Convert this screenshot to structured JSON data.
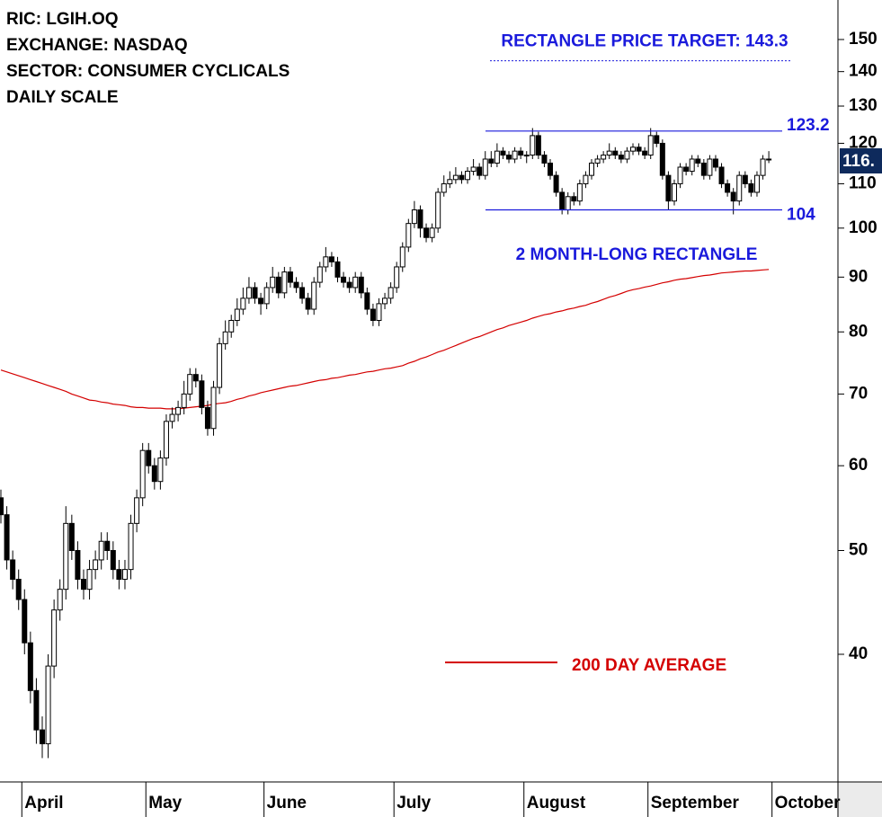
{
  "chart_data": {
    "type": "candlestick",
    "info_lines": [
      "RIC: LGIH.OQ",
      "EXCHANGE: NASDAQ",
      "SECTOR: CONSUMER CYCLICALS",
      "DAILY SCALE"
    ],
    "categories": [
      null,
      null,
      null,
      null,
      "April",
      null,
      null,
      null,
      null,
      null,
      null,
      null,
      null,
      null,
      null,
      null,
      null,
      null,
      null,
      null,
      null,
      null,
      null,
      null,
      null,
      "May",
      null,
      null,
      null,
      null,
      null,
      null,
      null,
      null,
      null,
      null,
      null,
      null,
      null,
      null,
      null,
      null,
      null,
      null,
      null,
      "June",
      null,
      null,
      null,
      null,
      null,
      null,
      null,
      null,
      null,
      null,
      null,
      null,
      null,
      null,
      null,
      null,
      null,
      null,
      null,
      null,
      null,
      "July",
      null,
      null,
      null,
      null,
      null,
      null,
      null,
      null,
      null,
      null,
      null,
      null,
      null,
      null,
      null,
      null,
      null,
      null,
      null,
      null,
      null,
      "August",
      null,
      null,
      null,
      null,
      null,
      null,
      null,
      null,
      null,
      null,
      null,
      null,
      null,
      null,
      null,
      null,
      null,
      null,
      null,
      null,
      "September",
      null,
      null,
      null,
      null,
      null,
      null,
      null,
      null,
      null,
      null,
      null,
      null,
      null,
      null,
      null,
      null,
      null,
      null,
      null,
      null,
      "October"
    ],
    "open": [
      56,
      54,
      49,
      47,
      45,
      41,
      37,
      34,
      33,
      39,
      44,
      46,
      53,
      50,
      47,
      46,
      48,
      49,
      51,
      50,
      48,
      47,
      48,
      53,
      56,
      62,
      60,
      58,
      61,
      66,
      67,
      68,
      70,
      73,
      72,
      68,
      65,
      71,
      78,
      80,
      82,
      84,
      86,
      88,
      86,
      85,
      88,
      90,
      87,
      91,
      89,
      88,
      86,
      84,
      89,
      92,
      94,
      93,
      90,
      89,
      88,
      90,
      87,
      84,
      82,
      85,
      86,
      88,
      92,
      96,
      101,
      104,
      100,
      98,
      100,
      108,
      110,
      111,
      112,
      111,
      113,
      114,
      112,
      116,
      115,
      118,
      117,
      116,
      118,
      117,
      117,
      122,
      117,
      115,
      112,
      108,
      104,
      107,
      106,
      110,
      112,
      115,
      116,
      117,
      118,
      117,
      116,
      118,
      119,
      118,
      117,
      122,
      120,
      112,
      106,
      110,
      114,
      113,
      116,
      115,
      112,
      116,
      114,
      110,
      108,
      106,
      112,
      110,
      108,
      112,
      116,
      null
    ],
    "high": [
      57,
      55,
      50,
      48,
      46,
      42,
      38,
      35,
      40,
      45,
      47,
      55,
      54,
      51,
      48,
      49,
      50,
      52,
      52,
      51,
      49,
      49,
      54,
      57,
      63,
      63,
      61,
      62,
      67,
      68,
      69,
      72,
      74,
      74,
      73,
      69,
      72,
      79,
      82,
      83,
      86,
      88,
      90,
      89,
      87,
      89,
      92,
      91,
      92,
      92,
      90,
      89,
      87,
      90,
      93,
      96,
      95,
      94,
      91,
      90,
      91,
      91,
      88,
      85,
      86,
      87,
      89,
      93,
      97,
      102,
      106,
      105,
      101,
      101,
      109,
      112,
      113,
      114,
      113,
      114,
      116,
      115,
      118,
      118,
      120,
      119,
      118,
      119,
      119,
      118,
      124,
      123,
      118,
      116,
      113,
      109,
      108,
      108,
      111,
      113,
      116,
      117,
      118,
      120,
      119,
      118,
      119,
      120,
      120,
      119,
      124,
      123,
      121,
      113,
      111,
      115,
      115,
      117,
      117,
      116,
      117,
      117,
      115,
      111,
      109,
      113,
      113,
      111,
      113,
      117,
      118,
      null
    ],
    "low": [
      53,
      48,
      46,
      44,
      40,
      36,
      33,
      32,
      32,
      38,
      43,
      45,
      49,
      46,
      45,
      45,
      47,
      48,
      49,
      47,
      46,
      46,
      47,
      52,
      55,
      59,
      57,
      57,
      60,
      65,
      66,
      67,
      69,
      71,
      67,
      64,
      64,
      70,
      77,
      79,
      81,
      83,
      85,
      85,
      83,
      84,
      87,
      86,
      86,
      88,
      87,
      85,
      83,
      83,
      88,
      91,
      92,
      89,
      88,
      87,
      87,
      86,
      83,
      81,
      81,
      84,
      85,
      87,
      91,
      95,
      100,
      98,
      97,
      97,
      99,
      107,
      109,
      110,
      110,
      110,
      112,
      111,
      111,
      114,
      114,
      116,
      115,
      115,
      116,
      115,
      116,
      116,
      114,
      111,
      107,
      103,
      103,
      105,
      105,
      109,
      111,
      114,
      115,
      116,
      116,
      115,
      115,
      117,
      117,
      116,
      116,
      119,
      111,
      104,
      105,
      109,
      112,
      112,
      114,
      111,
      111,
      113,
      109,
      107,
      103,
      105,
      109,
      107,
      107,
      111,
      115,
      null
    ],
    "close": [
      54,
      49,
      47,
      45,
      41,
      37,
      34,
      33,
      39,
      44,
      46,
      53,
      50,
      47,
      46,
      48,
      49,
      51,
      50,
      48,
      47,
      48,
      53,
      56,
      62,
      60,
      58,
      61,
      66,
      67,
      68,
      70,
      73,
      72,
      68,
      65,
      71,
      78,
      80,
      82,
      84,
      86,
      88,
      86,
      85,
      88,
      90,
      87,
      91,
      89,
      88,
      86,
      84,
      89,
      92,
      94,
      93,
      90,
      89,
      88,
      90,
      87,
      84,
      82,
      85,
      86,
      88,
      92,
      96,
      101,
      104,
      100,
      98,
      100,
      108,
      110,
      111,
      112,
      111,
      113,
      114,
      112,
      116,
      115,
      118,
      117,
      116,
      118,
      117,
      117,
      122,
      117,
      115,
      112,
      108,
      104,
      107,
      106,
      110,
      112,
      115,
      116,
      117,
      118,
      117,
      116,
      118,
      119,
      118,
      117,
      122,
      120,
      112,
      106,
      110,
      114,
      113,
      116,
      115,
      112,
      116,
      114,
      110,
      108,
      106,
      112,
      110,
      108,
      112,
      116,
      116,
      null
    ],
    "series": [
      {
        "name": "200 DAY AVERAGE",
        "color": "#d40000",
        "values": [
          73.7,
          73.4,
          73.1,
          72.8,
          72.5,
          72.2,
          71.9,
          71.6,
          71.3,
          71.0,
          70.7,
          70.4,
          70.0,
          69.7,
          69.4,
          69.1,
          69.0,
          68.8,
          68.7,
          68.5,
          68.4,
          68.3,
          68.1,
          68.0,
          68.0,
          67.9,
          67.9,
          67.9,
          67.8,
          67.8,
          67.8,
          67.9,
          68.0,
          68.1,
          68.2,
          68.3,
          68.5,
          68.6,
          68.7,
          68.9,
          69.2,
          69.4,
          69.7,
          69.9,
          70.2,
          70.4,
          70.6,
          70.8,
          71.0,
          71.2,
          71.3,
          71.5,
          71.7,
          71.9,
          72.1,
          72.2,
          72.4,
          72.5,
          72.7,
          72.9,
          73.0,
          73.2,
          73.4,
          73.5,
          73.7,
          73.9,
          74.0,
          74.2,
          74.4,
          74.8,
          75.1,
          75.5,
          75.8,
          76.2,
          76.6,
          76.9,
          77.3,
          77.7,
          78.1,
          78.5,
          78.9,
          79.2,
          79.6,
          80.0,
          80.4,
          80.7,
          81.1,
          81.4,
          81.7,
          82.0,
          82.4,
          82.7,
          83.0,
          83.2,
          83.5,
          83.7,
          84.0,
          84.2,
          84.5,
          84.7,
          85.1,
          85.4,
          85.8,
          86.2,
          86.5,
          86.9,
          87.3,
          87.6,
          87.8,
          88.1,
          88.3,
          88.6,
          88.9,
          89.1,
          89.4,
          89.6,
          89.7,
          89.9,
          90.1,
          90.3,
          90.4,
          90.6,
          90.8,
          90.9,
          91.0,
          91.1,
          91.2,
          91.2,
          91.3,
          91.4,
          91.5,
          null
        ]
      }
    ],
    "ylim": [
      30.4,
      163.3
    ],
    "log_scale": true,
    "yticks": [
      40,
      50,
      60,
      70,
      80,
      90,
      100,
      110,
      120,
      130,
      140,
      150
    ],
    "levels": [
      123.2,
      104
    ],
    "level_color": "#1a1adc",
    "target": 143.3,
    "target_label": "RECTANGLE PRICE TARGET: 143.3",
    "rectangle_label": "2 MONTH-LONG RECTANGLE",
    "last_price_label": "116."
  }
}
